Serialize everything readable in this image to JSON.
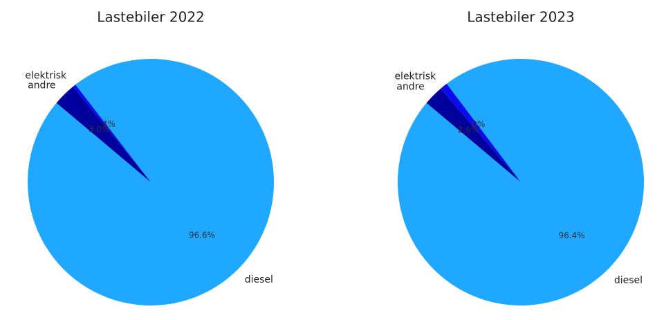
{
  "chart_data": [
    {
      "type": "pie",
      "title": "Lastebiler 2022",
      "categories": [
        "diesel",
        "elektrisk",
        "andre"
      ],
      "values": [
        96.6,
        0.4,
        3.0
      ],
      "value_labels": [
        "96.6%",
        "0.4%",
        "3.0%"
      ],
      "colors": [
        "#1fa8ff",
        "#0b0bf0",
        "#00009c"
      ]
    },
    {
      "type": "pie",
      "title": "Lastebiler 2023",
      "categories": [
        "diesel",
        "elektrisk",
        "andre"
      ],
      "values": [
        96.4,
        1.0,
        2.6
      ],
      "value_labels": [
        "96.4%",
        "1.0%",
        "2.6%"
      ],
      "colors": [
        "#1fa8ff",
        "#0b0bf0",
        "#00009c"
      ]
    }
  ]
}
